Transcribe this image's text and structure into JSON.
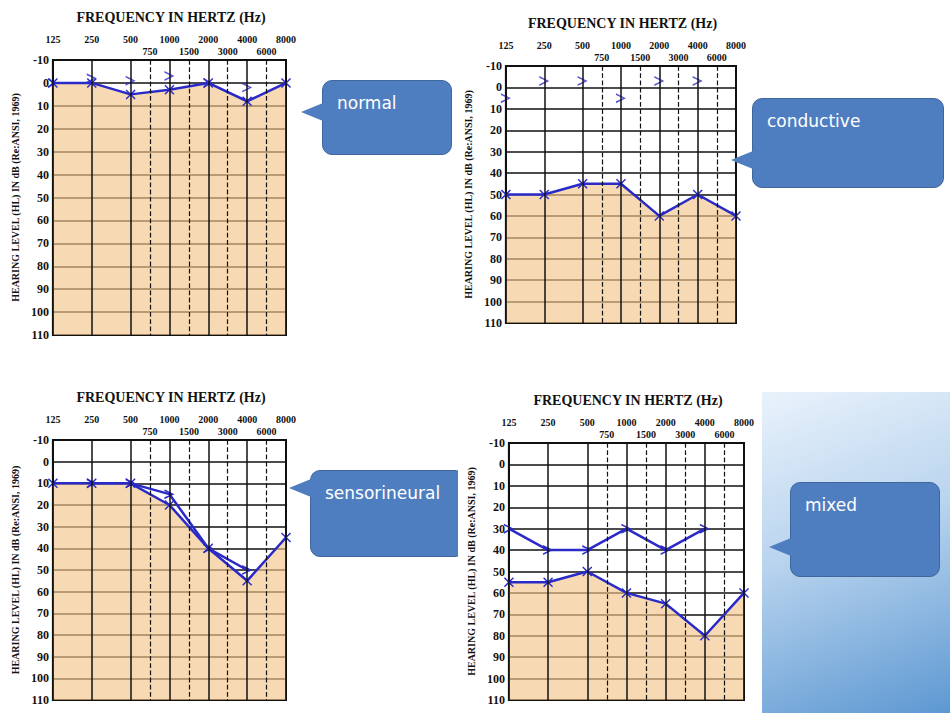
{
  "chart_data": [
    {
      "type": "line",
      "title": "FREQUENCY IN HERTZ (Hz)",
      "y_label": "HEARING LEVEL (HL) IN dB (Re:ANSI, 1969)",
      "annotation": "normal",
      "categories": [
        125,
        null,
        250,
        null,
        500,
        750,
        1000,
        1500,
        2000,
        3000,
        4000,
        6000,
        8000
      ],
      "ylim": [
        -10,
        110
      ],
      "yticks": [
        -10,
        0,
        10,
        20,
        30,
        40,
        50,
        60,
        70,
        80,
        90,
        100,
        110
      ],
      "grid": true,
      "series": [
        {
          "type": "line",
          "color": "#2a2ac8",
          "marker": "x",
          "line_style": "solid",
          "values": [
            0,
            null,
            0,
            null,
            5,
            null,
            3,
            null,
            0,
            null,
            8,
            null,
            0
          ]
        },
        {
          "type": "scatter",
          "color": "#2a2ac8",
          "marker": "arrow",
          "line_style": "none",
          "values": [
            0,
            null,
            -2,
            null,
            -1,
            null,
            -3,
            null,
            0,
            null,
            2,
            null,
            null
          ]
        }
      ]
    },
    {
      "type": "line",
      "title": "FREQUENCY IN HERTZ (Hz)",
      "y_label": "HEARING LEVEL (HL) IN dB (Re:ANSI, 1969)",
      "annotation": "conductive",
      "categories": [
        125,
        null,
        250,
        null,
        500,
        750,
        1000,
        1500,
        2000,
        3000,
        4000,
        6000,
        8000
      ],
      "ylim": [
        -10,
        110
      ],
      "yticks": [
        -10,
        0,
        10,
        20,
        30,
        40,
        50,
        60,
        70,
        80,
        90,
        100,
        110
      ],
      "grid": true,
      "series": [
        {
          "type": "line",
          "color": "#2a2ac8",
          "marker": "x",
          "line_style": "solid",
          "values": [
            50,
            null,
            50,
            null,
            45,
            null,
            45,
            null,
            60,
            null,
            50,
            null,
            60
          ]
        },
        {
          "type": "scatter",
          "color": "#2a2ac8",
          "marker": "arrow",
          "line_style": "none",
          "values": [
            5,
            null,
            -3,
            null,
            -3,
            null,
            5,
            null,
            -3,
            null,
            -3,
            null,
            null
          ]
        }
      ]
    },
    {
      "type": "line",
      "title": "FREQUENCY IN HERTZ (Hz)",
      "y_label": "HEARING LEVEL (HL) IN dB (Re:ANSI, 1969)",
      "annotation": "sensorineural",
      "categories": [
        125,
        null,
        250,
        null,
        500,
        750,
        1000,
        1500,
        2000,
        3000,
        4000,
        6000,
        8000
      ],
      "ylim": [
        -10,
        110
      ],
      "yticks": [
        -10,
        0,
        10,
        20,
        30,
        40,
        50,
        60,
        70,
        80,
        90,
        100,
        110
      ],
      "grid": true,
      "series": [
        {
          "type": "line",
          "color": "#2a2ac8",
          "marker": "x",
          "line_style": "solid",
          "values": [
            10,
            null,
            10,
            null,
            10,
            null,
            20,
            null,
            40,
            null,
            55,
            null,
            35
          ]
        },
        {
          "type": "line",
          "color": "#2a2ac8",
          "marker": "arrow",
          "line_style": "solid",
          "values": [
            null,
            null,
            10,
            null,
            10,
            null,
            15,
            null,
            40,
            null,
            50,
            null,
            null
          ]
        }
      ]
    },
    {
      "type": "line",
      "title": "FREQUENCY IN HERTZ (Hz)",
      "y_label": "HEARING LEVEL (HL) IN dB (Re:ANSI, 1969)",
      "annotation": "mixed",
      "categories": [
        125,
        null,
        250,
        null,
        500,
        750,
        1000,
        1500,
        2000,
        3000,
        4000,
        6000,
        8000
      ],
      "ylim": [
        -10,
        110
      ],
      "yticks": [
        -10,
        0,
        10,
        20,
        30,
        40,
        50,
        60,
        70,
        80,
        90,
        100,
        110
      ],
      "grid": true,
      "series": [
        {
          "type": "line",
          "color": "#2a2ac8",
          "marker": "x",
          "line_style": "solid",
          "values": [
            55,
            null,
            55,
            null,
            50,
            null,
            60,
            null,
            65,
            null,
            80,
            null,
            60
          ]
        },
        {
          "type": "line",
          "color": "#2a2ac8",
          "marker": "arrow",
          "line_style": "solid",
          "values": [
            30,
            null,
            40,
            null,
            40,
            null,
            30,
            null,
            40,
            null,
            30,
            null,
            null
          ]
        }
      ]
    }
  ]
}
